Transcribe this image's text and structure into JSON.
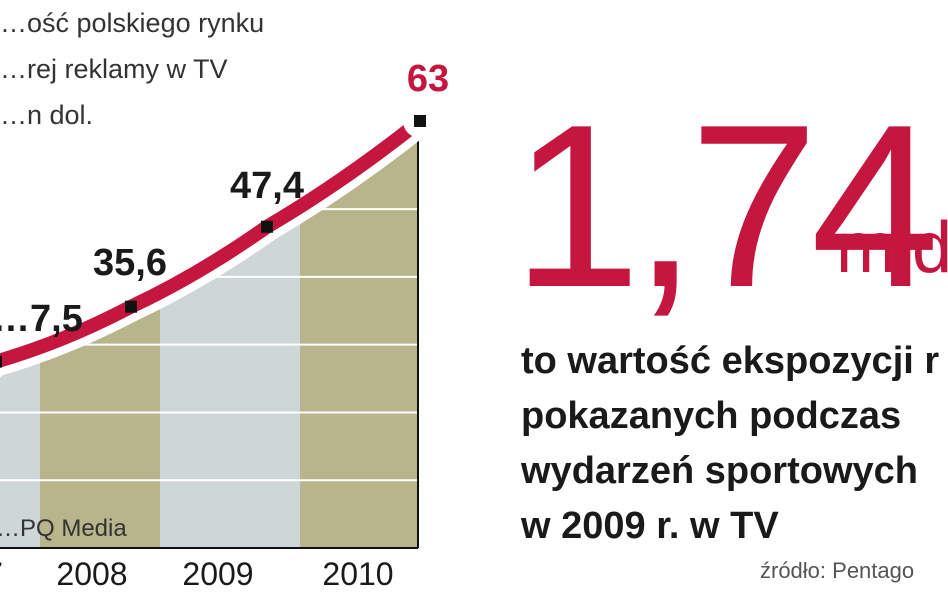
{
  "chart_data": {
    "type": "area",
    "title": "…ość polskiego rynku\n…rej reklamy w TV\n…n dol.",
    "categories": [
      "…7",
      "2008",
      "2009",
      "2010"
    ],
    "values": [
      27.5,
      35.6,
      47.4,
      63
    ],
    "data_labels": [
      "…7,5",
      "35,6",
      "47,4",
      "63"
    ],
    "source": "…PQ Media",
    "ylim": [
      0,
      70
    ],
    "grid": true,
    "colors": {
      "line": "#c4163e",
      "marker": "#111111",
      "band_light": "#cfd6d8",
      "band_dark": "#b8b48c",
      "axis": "#111111"
    }
  },
  "highlight": {
    "value": "1,74",
    "unit": "mld",
    "caption": "to wartość ekspozycji r\npokazanych podczas\nwydarzeń sportowych\nw 2009 r. w TV",
    "source": "źródło: Pentago"
  }
}
